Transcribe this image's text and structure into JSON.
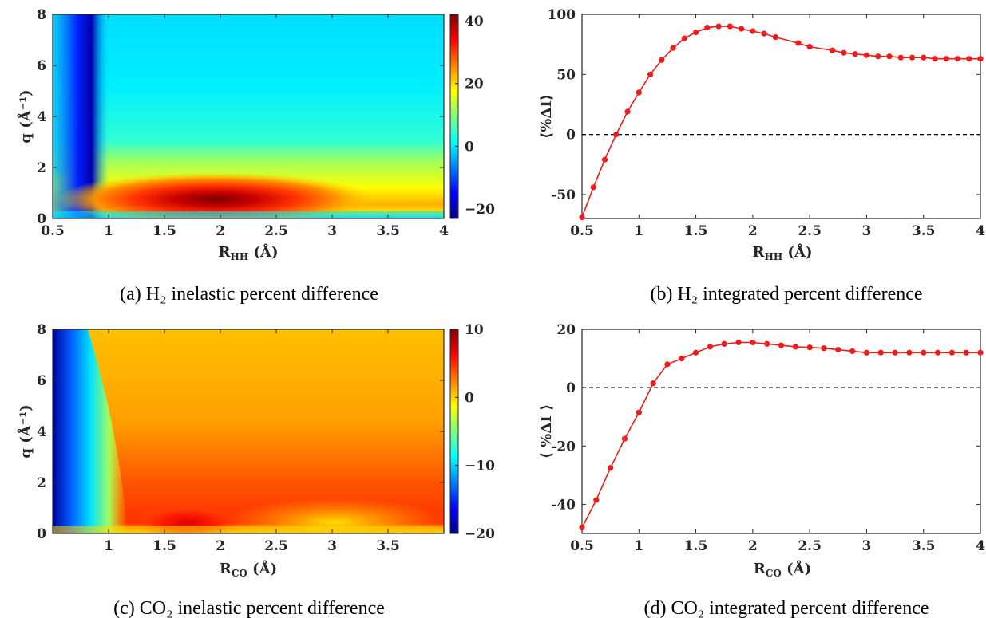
{
  "panels": {
    "a": {
      "caption": "(a) H₂ inelastic percent difference",
      "ylabel": "q (Å⁻¹)",
      "xlabel_main": "R",
      "xlabel_sub": "HH",
      "xlabel_unit": "(Å)",
      "xticks": [
        "0.5",
        "1",
        "1.5",
        "2",
        "2.5",
        "3",
        "3.5",
        "4"
      ],
      "yticks": [
        "0",
        "2",
        "4",
        "6",
        "8"
      ],
      "cbar_ticks": [
        "40",
        "20",
        "0",
        "−20"
      ]
    },
    "b": {
      "caption": "(b) H₂ integrated percent difference",
      "ylabel": "⟨%ΔI⟩",
      "xlabel_main": "R",
      "xlabel_sub": "HH",
      "xlabel_unit": "(Å)",
      "xticks": [
        "0.5",
        "1",
        "1.5",
        "2",
        "2.5",
        "3",
        "3.5",
        "4"
      ],
      "yticks": [
        "100",
        "50",
        "0",
        "-50"
      ]
    },
    "c": {
      "caption": "(c) CO₂ inelastic percent difference",
      "ylabel": "q (Å⁻¹)",
      "xlabel_main": "R",
      "xlabel_sub": "CO",
      "xlabel_unit": "(Å)",
      "xticks": [
        "1",
        "1.5",
        "2",
        "2.5",
        "3",
        "3.5"
      ],
      "yticks": [
        "0",
        "2",
        "4",
        "6",
        "8"
      ],
      "cbar_ticks": [
        "10",
        "0",
        "−10",
        "−20"
      ]
    },
    "d": {
      "caption": "(d) CO₂ integrated percent difference",
      "ylabel": "⟨ %ΔI ⟩",
      "xlabel_main": "R",
      "xlabel_sub": "CO",
      "xlabel_unit": "(Å)",
      "xticks": [
        "0.5",
        "1",
        "1.5",
        "2",
        "2.5",
        "3",
        "3.5",
        "4"
      ],
      "yticks": [
        "20",
        "0",
        "-20",
        "-40"
      ]
    }
  },
  "colors": {
    "curve": "#ee1c1c",
    "frame": "#262626",
    "colormap": "jet"
  },
  "chart_data": [
    {
      "type": "heatmap",
      "title": "(a) H₂ inelastic percent difference",
      "xlabel": "R_HH (Å)",
      "ylabel": "q (Å⁻¹)",
      "xlim": [
        0.5,
        4
      ],
      "ylim": [
        0,
        8
      ],
      "clim": [
        -23,
        42
      ],
      "colorbar": "jet",
      "features": [
        {
          "desc": "minimum",
          "x": 0.7,
          "y": 0.4,
          "value": -22
        },
        {
          "desc": "maximum",
          "x": 1.8,
          "y": 0.5,
          "value": 42
        },
        {
          "desc": "plateau at large q",
          "value": 5
        }
      ]
    },
    {
      "type": "line",
      "title": "(b) H₂ integrated percent difference",
      "xlabel": "R_HH (Å)",
      "ylabel": "⟨%ΔI⟩",
      "xlim": [
        0.5,
        4
      ],
      "ylim": [
        -70,
        100
      ],
      "hline": 0,
      "x": [
        0.5,
        0.6,
        0.7,
        0.8,
        0.9,
        1.0,
        1.1,
        1.2,
        1.3,
        1.4,
        1.5,
        1.6,
        1.7,
        1.8,
        1.9,
        2.0,
        2.1,
        2.2,
        2.4,
        2.5,
        2.7,
        2.8,
        2.9,
        3.0,
        3.1,
        3.2,
        3.3,
        3.4,
        3.5,
        3.6,
        3.7,
        3.8,
        3.9,
        4.0
      ],
      "y": [
        -69,
        -44,
        -21,
        0,
        19,
        35,
        50,
        62,
        72,
        80,
        85,
        89,
        90,
        90,
        88,
        86,
        84,
        81,
        76,
        73,
        70,
        68,
        67,
        66,
        65,
        65,
        64,
        64,
        64,
        63,
        63,
        63,
        63,
        63
      ]
    },
    {
      "type": "heatmap",
      "title": "(c) CO₂ inelastic percent difference",
      "xlabel": "R_CO (Å)",
      "ylabel": "q (Å⁻¹)",
      "xlim": [
        0.5,
        4
      ],
      "ylim": [
        0,
        8
      ],
      "clim": [
        -20,
        10
      ],
      "colorbar": "jet",
      "features": [
        {
          "desc": "minimum",
          "x": 0.55,
          "y": 0.8,
          "value": -20
        },
        {
          "desc": "maximum",
          "x": 1.8,
          "y": 0.4,
          "value": 9
        },
        {
          "desc": "plateau at large q",
          "value": 3
        }
      ]
    },
    {
      "type": "line",
      "title": "(d) CO₂ integrated percent difference",
      "xlabel": "R_CO (Å)",
      "ylabel": "⟨ %ΔI ⟩",
      "xlim": [
        0.5,
        4
      ],
      "ylim": [
        -50,
        20
      ],
      "hline": 0,
      "x": [
        0.5,
        0.625,
        0.75,
        0.875,
        1.0,
        1.125,
        1.25,
        1.375,
        1.5,
        1.625,
        1.75,
        1.875,
        2.0,
        2.125,
        2.25,
        2.375,
        2.5,
        2.625,
        2.75,
        2.875,
        3.0,
        3.125,
        3.25,
        3.375,
        3.5,
        3.625,
        3.75,
        3.875,
        4.0
      ],
      "y": [
        -48,
        -38.5,
        -27.5,
        -17.5,
        -8.5,
        1.5,
        8,
        10,
        12,
        14,
        15,
        15.5,
        15.5,
        15,
        14.5,
        14,
        13.8,
        13.5,
        13,
        12.5,
        12,
        12,
        12,
        12,
        12,
        12,
        12,
        12,
        12
      ]
    }
  ]
}
